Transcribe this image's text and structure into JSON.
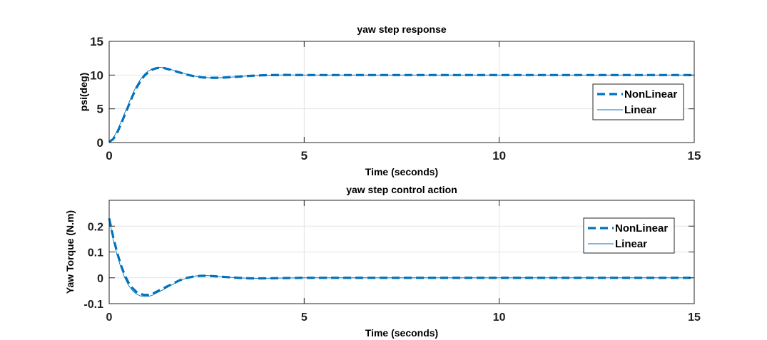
{
  "chart_data": [
    {
      "type": "line",
      "title": "yaw step response",
      "xlabel": "Time (seconds)",
      "ylabel": "psi(deg)",
      "xlim": [
        0,
        15
      ],
      "ylim": [
        0,
        15
      ],
      "xticks": [
        "0",
        "5",
        "10",
        "15"
      ],
      "yticks": [
        "0",
        "5",
        "10",
        "15"
      ],
      "grid": true,
      "legend": "right",
      "series": [
        {
          "name": "NonLinear",
          "style": "dashed",
          "color": "#0072BD",
          "x": [
            0,
            0.1,
            0.2,
            0.3,
            0.4,
            0.5,
            0.6,
            0.7,
            0.8,
            0.9,
            1.0,
            1.1,
            1.2,
            1.3,
            1.4,
            1.5,
            1.6,
            1.8,
            2.0,
            2.2,
            2.4,
            2.6,
            2.8,
            3.0,
            3.2,
            3.4,
            3.6,
            3.8,
            4.0,
            4.5,
            5.0,
            6.0,
            8.0,
            10.0,
            12.0,
            15.0
          ],
          "y": [
            0.1,
            0.5,
            1.4,
            2.7,
            4.1,
            5.5,
            6.9,
            8.1,
            9.1,
            9.9,
            10.4,
            10.8,
            11.0,
            11.1,
            11.05,
            10.9,
            10.75,
            10.4,
            10.05,
            9.8,
            9.65,
            9.6,
            9.6,
            9.65,
            9.72,
            9.8,
            9.88,
            9.94,
            9.98,
            10.02,
            10.0,
            10.0,
            10.0,
            10.0,
            10.0,
            10.0
          ]
        },
        {
          "name": "Linear",
          "style": "solid",
          "color": "#0072BD",
          "x": [
            0,
            0.1,
            0.2,
            0.3,
            0.4,
            0.5,
            0.6,
            0.7,
            0.8,
            0.9,
            1.0,
            1.1,
            1.2,
            1.3,
            1.4,
            1.5,
            1.6,
            1.8,
            2.0,
            2.2,
            2.4,
            2.6,
            2.8,
            3.0,
            3.2,
            3.4,
            3.6,
            3.8,
            4.0,
            4.5,
            5.0,
            6.0,
            8.0,
            10.0,
            12.0,
            15.0
          ],
          "y": [
            0.0,
            0.6,
            1.7,
            3.0,
            4.4,
            5.8,
            7.2,
            8.4,
            9.35,
            10.1,
            10.6,
            10.9,
            11.1,
            11.15,
            11.1,
            10.95,
            10.8,
            10.45,
            10.1,
            9.82,
            9.66,
            9.6,
            9.6,
            9.65,
            9.72,
            9.8,
            9.88,
            9.94,
            9.98,
            10.02,
            10.0,
            10.0,
            10.0,
            10.0,
            10.0,
            10.0
          ]
        }
      ]
    },
    {
      "type": "line",
      "title": "yaw step control action",
      "xlabel": "Time (seconds)",
      "ylabel": "Yaw Torque (N.m)",
      "xlim": [
        0,
        15
      ],
      "ylim": [
        -0.1,
        0.3
      ],
      "xticks": [
        "0",
        "5",
        "10",
        "15"
      ],
      "yticks": [
        "-0.1",
        "0",
        "0.1",
        "0.2"
      ],
      "grid": true,
      "legend": "top-right",
      "series": [
        {
          "name": "NonLinear",
          "style": "dashed",
          "color": "#0072BD",
          "x": [
            0,
            0.1,
            0.2,
            0.3,
            0.4,
            0.5,
            0.6,
            0.7,
            0.8,
            0.9,
            1.0,
            1.1,
            1.2,
            1.4,
            1.6,
            1.8,
            2.0,
            2.2,
            2.4,
            2.6,
            2.8,
            3.0,
            3.3,
            3.6,
            4.0,
            4.5,
            5.0,
            6.0,
            8.0,
            10.0,
            12.0,
            15.0
          ],
          "y": [
            0.23,
            0.16,
            0.1,
            0.05,
            0.01,
            -0.02,
            -0.04,
            -0.055,
            -0.063,
            -0.066,
            -0.066,
            -0.063,
            -0.055,
            -0.04,
            -0.025,
            -0.01,
            0.0,
            0.006,
            0.008,
            0.007,
            0.005,
            0.003,
            0.0,
            -0.002,
            -0.002,
            -0.001,
            0.0,
            0.0,
            0.0,
            0.0,
            0.0,
            0.0
          ]
        },
        {
          "name": "Linear",
          "style": "solid",
          "color": "#0072BD",
          "x": [
            0,
            0.1,
            0.2,
            0.3,
            0.4,
            0.5,
            0.6,
            0.7,
            0.8,
            0.9,
            1.0,
            1.1,
            1.2,
            1.4,
            1.6,
            1.8,
            2.0,
            2.2,
            2.4,
            2.6,
            2.8,
            3.0,
            3.3,
            3.6,
            4.0,
            4.5,
            5.0,
            6.0,
            8.0,
            10.0,
            12.0,
            15.0
          ],
          "y": [
            0.23,
            0.15,
            0.09,
            0.04,
            0.0,
            -0.03,
            -0.05,
            -0.063,
            -0.07,
            -0.073,
            -0.072,
            -0.068,
            -0.06,
            -0.045,
            -0.028,
            -0.012,
            0.0,
            0.007,
            0.009,
            0.008,
            0.006,
            0.003,
            0.0,
            -0.002,
            -0.002,
            -0.001,
            0.0,
            0.0,
            0.0,
            0.0,
            0.0,
            0.0
          ]
        }
      ]
    }
  ]
}
